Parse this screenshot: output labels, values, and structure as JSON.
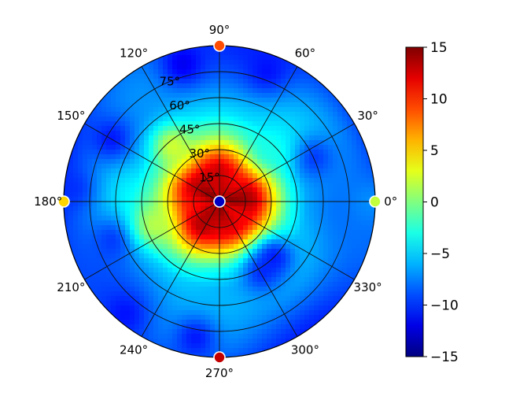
{
  "chart_data": {
    "type": "heatmap",
    "projection": "polar",
    "colormap": "jet",
    "title": "",
    "angular_ticks": [
      {
        "deg": 0,
        "label": "0°"
      },
      {
        "deg": 30,
        "label": "30°"
      },
      {
        "deg": 60,
        "label": "60°"
      },
      {
        "deg": 90,
        "label": "90°"
      },
      {
        "deg": 120,
        "label": "120°"
      },
      {
        "deg": 150,
        "label": "150°"
      },
      {
        "deg": 180,
        "label": "180°"
      },
      {
        "deg": 210,
        "label": "210°"
      },
      {
        "deg": 240,
        "label": "240°"
      },
      {
        "deg": 270,
        "label": "270°"
      },
      {
        "deg": 300,
        "label": "300°"
      },
      {
        "deg": 330,
        "label": "330°"
      }
    ],
    "radial_ticks": [
      {
        "value": 15,
        "label": "15°"
      },
      {
        "value": 30,
        "label": "30°"
      },
      {
        "value": 45,
        "label": "45°"
      },
      {
        "value": 60,
        "label": "60°"
      },
      {
        "value": 75,
        "label": "75°"
      }
    ],
    "radial_range": [
      0,
      90
    ],
    "color_range": [
      -15,
      15
    ],
    "colorbar": {
      "ticks": [
        {
          "value": 15,
          "label": "15"
        },
        {
          "value": 10,
          "label": "10"
        },
        {
          "value": 5,
          "label": "5"
        },
        {
          "value": 0,
          "label": "0"
        },
        {
          "value": -5,
          "label": "−5"
        },
        {
          "value": -10,
          "label": "−10"
        },
        {
          "value": -15,
          "label": "−15"
        }
      ]
    },
    "field_profile": [
      {
        "r": 0,
        "value": 14
      },
      {
        "r": 10,
        "value": 13
      },
      {
        "r": 20,
        "value": 12
      },
      {
        "r": 25,
        "value": 9
      },
      {
        "r": 30,
        "value": 5
      },
      {
        "r": 35,
        "value": 1
      },
      {
        "r": 40,
        "value": -2
      },
      {
        "r": 50,
        "value": -5
      },
      {
        "r": 60,
        "value": -6
      },
      {
        "r": 70,
        "value": -7
      },
      {
        "r": 80,
        "value": -8
      },
      {
        "r": 90,
        "value": -9
      }
    ],
    "local_features": [
      {
        "theta": 105,
        "r": 82,
        "value": -12
      },
      {
        "theta": 70,
        "r": 80,
        "value": -11
      },
      {
        "theta": 25,
        "r": 60,
        "value": -10
      },
      {
        "theta": 150,
        "r": 72,
        "value": -11
      },
      {
        "theta": 200,
        "r": 65,
        "value": -10
      },
      {
        "theta": 300,
        "r": 48,
        "value": -10
      },
      {
        "theta": 315,
        "r": 45,
        "value": -11
      },
      {
        "theta": 260,
        "r": 80,
        "value": -11
      },
      {
        "theta": 230,
        "r": 85,
        "value": -11
      },
      {
        "theta": 175,
        "r": 85,
        "value": -10
      },
      {
        "theta": 45,
        "r": 42,
        "value": -3
      },
      {
        "theta": 200,
        "r": 40,
        "value": 2
      },
      {
        "theta": 130,
        "r": 42,
        "value": 3
      },
      {
        "theta": 0,
        "r": 88,
        "value": -7
      }
    ],
    "points": [
      {
        "theta": 0,
        "r": 90,
        "value": 2
      },
      {
        "theta": 90,
        "r": 90,
        "value": 9
      },
      {
        "theta": 180,
        "r": 90,
        "value": 5
      },
      {
        "theta": 270,
        "r": 90,
        "value": 13
      },
      {
        "theta": 0,
        "r": 0,
        "value": -13
      }
    ]
  }
}
